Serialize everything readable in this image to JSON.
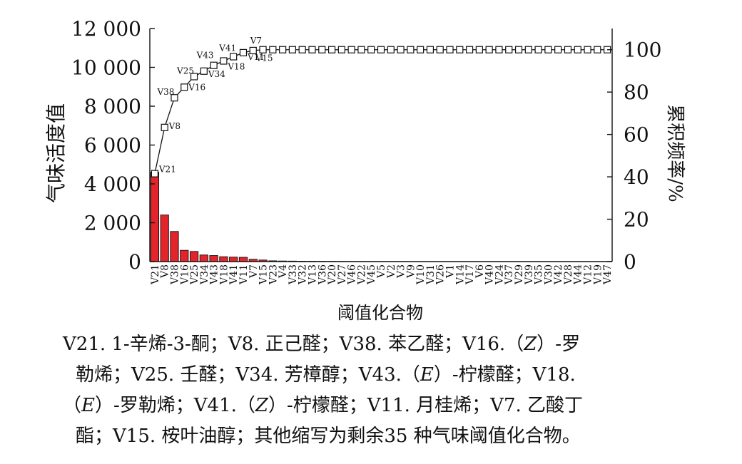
{
  "chart_data": {
    "type": "bar",
    "categories": [
      "V21",
      "V8",
      "V38",
      "V16",
      "V25",
      "V34",
      "V43",
      "V18",
      "V41",
      "V11",
      "V7",
      "V15",
      "V23",
      "V4",
      "V33",
      "V32",
      "V13",
      "V36",
      "V20",
      "V27",
      "V46",
      "V22",
      "V45",
      "V5",
      "V2",
      "V3",
      "V9",
      "V10",
      "V31",
      "V26",
      "V1",
      "V14",
      "V17",
      "V6",
      "V40",
      "V24",
      "V37",
      "V29",
      "V39",
      "V35",
      "V30",
      "V42",
      "V28",
      "V44",
      "V12",
      "V19",
      "V47"
    ],
    "xlabel": "阈值化合物",
    "ylabel": "气味活度值",
    "y2label": "累积频率/%",
    "ylim": [
      0,
      12000
    ],
    "y2lim": [
      0,
      110
    ],
    "yticks": [
      "0",
      "2 000",
      "4 000",
      "6 000",
      "8 000",
      "10 000",
      "12 000"
    ],
    "y2ticks": [
      "0",
      "20",
      "40",
      "60",
      "80",
      "100"
    ],
    "bar_color": "#e3242b",
    "series": [
      {
        "name": "",
        "type": "bar",
        "axis": "left",
        "values": [
          4600,
          2400,
          1550,
          580,
          520,
          340,
          310,
          250,
          230,
          220,
          120,
          80,
          40,
          30,
          25,
          20,
          18,
          15,
          12,
          10,
          8,
          7,
          6,
          5,
          4,
          4,
          3,
          3,
          3,
          2,
          2,
          2,
          2,
          1,
          1,
          1,
          1,
          1,
          1,
          1,
          1,
          1,
          1,
          1,
          1,
          1,
          1
        ]
      },
      {
        "name": "",
        "type": "line",
        "axis": "right",
        "marker": "square",
        "values": [
          41.5,
          63.3,
          77.3,
          82.3,
          87.3,
          89.9,
          92.6,
          94.7,
          96.7,
          98.6,
          99.6,
          100,
          100,
          100,
          100,
          100,
          100,
          100,
          100,
          100,
          100,
          100,
          100,
          100,
          100,
          100,
          100,
          100,
          100,
          100,
          100,
          100,
          100,
          100,
          100,
          100,
          100,
          100,
          100,
          100,
          100,
          100,
          100,
          100,
          100,
          100,
          100
        ]
      }
    ],
    "annotations": [
      {
        "label": "V21",
        "index": 0
      },
      {
        "label": "V8",
        "index": 1
      },
      {
        "label": "V38",
        "index": 2
      },
      {
        "label": "V16",
        "index": 3
      },
      {
        "label": "V25",
        "index": 4
      },
      {
        "label": "V34",
        "index": 5
      },
      {
        "label": "V43",
        "index": 6
      },
      {
        "label": "V18",
        "index": 7
      },
      {
        "label": "V41",
        "index": 8
      },
      {
        "label": "V11",
        "index": 9
      },
      {
        "label": "V7",
        "index": 10
      },
      {
        "label": "V15",
        "index": 11
      }
    ]
  },
  "caption": {
    "lines": [
      [
        "V21. 1-辛烯-3-酮；V8. 正己醛；V38. 苯乙醛；V16.（",
        "Z",
        "）-罗"
      ],
      [
        "勒烯；V25. 壬醛；V34. 芳樟醇；V43.（",
        "E",
        "）-柠檬醛；V18."
      ],
      [
        "（",
        "E",
        "）-罗勒烯；V41.（",
        "Z",
        "）-柠檬醛；V11. 月桂烯；V7. 乙酸丁"
      ],
      [
        "酯；V15. 桉叶油醇；其他缩写为剩余35 种气味阈值化合物。"
      ]
    ]
  }
}
